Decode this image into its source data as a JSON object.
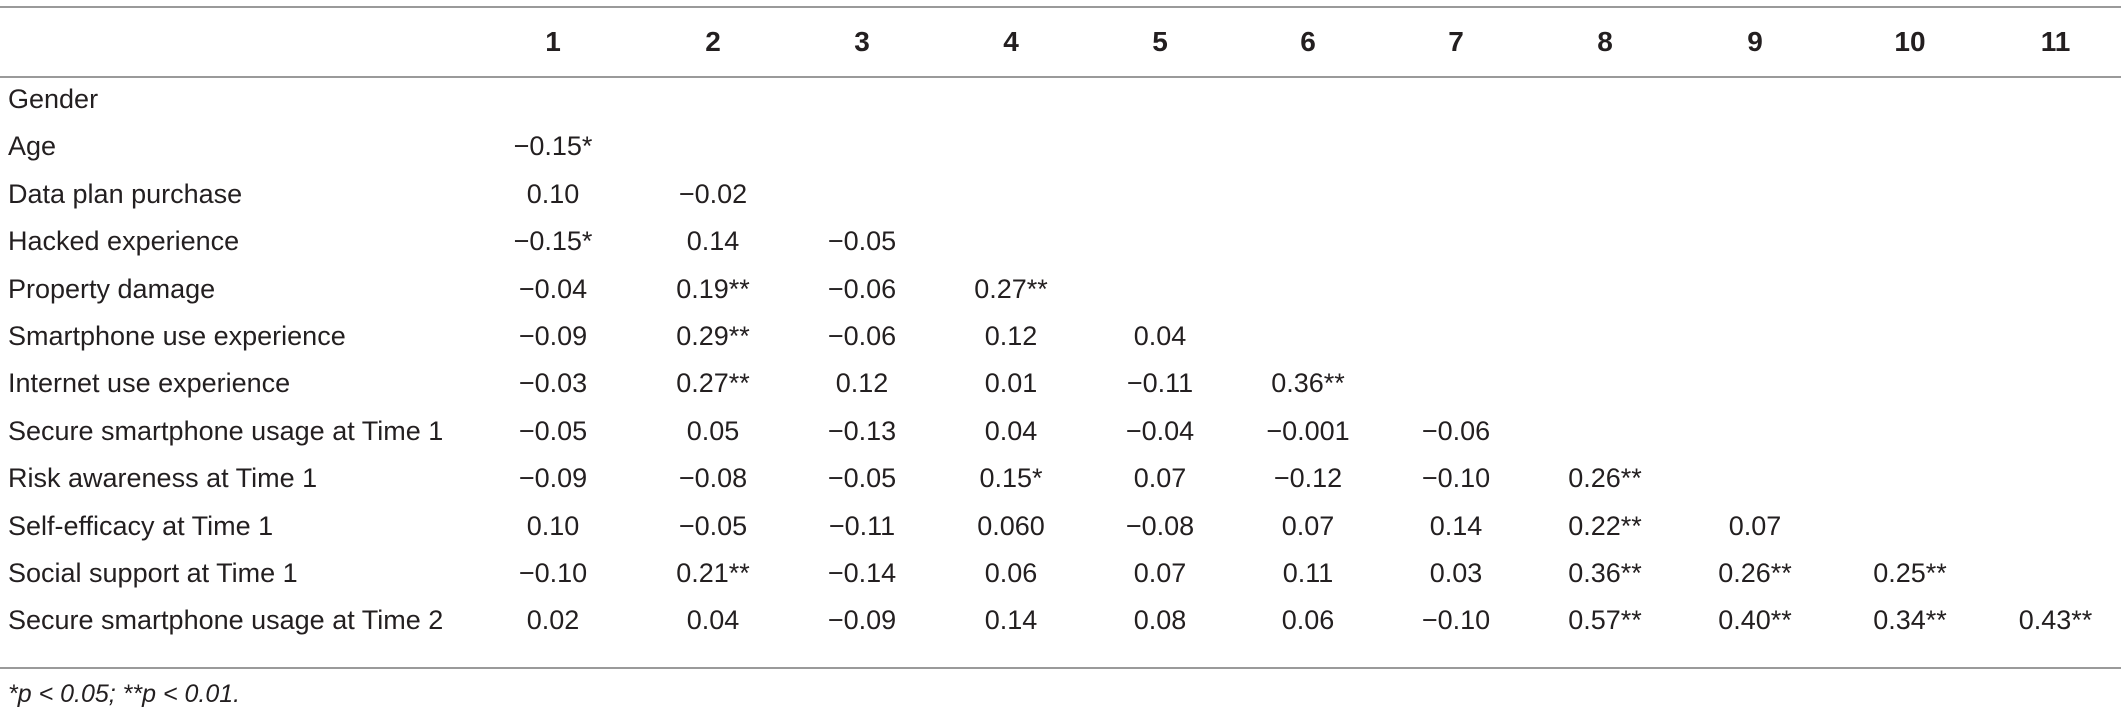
{
  "table": {
    "column_headers": [
      "",
      "1",
      "2",
      "3",
      "4",
      "5",
      "6",
      "7",
      "8",
      "9",
      "10",
      "11"
    ],
    "rows": [
      {
        "label": "Gender",
        "values": [
          "",
          "",
          "",
          "",
          "",
          "",
          "",
          "",
          "",
          "",
          ""
        ]
      },
      {
        "label": "Age",
        "values": [
          "−0.15*",
          "",
          "",
          "",
          "",
          "",
          "",
          "",
          "",
          "",
          ""
        ]
      },
      {
        "label": "Data plan purchase",
        "values": [
          "0.10",
          "−0.02",
          "",
          "",
          "",
          "",
          "",
          "",
          "",
          "",
          ""
        ]
      },
      {
        "label": "Hacked experience",
        "values": [
          "−0.15*",
          "0.14",
          "−0.05",
          "",
          "",
          "",
          "",
          "",
          "",
          "",
          ""
        ]
      },
      {
        "label": "Property damage",
        "values": [
          "−0.04",
          "0.19**",
          "−0.06",
          "0.27**",
          "",
          "",
          "",
          "",
          "",
          "",
          ""
        ]
      },
      {
        "label": "Smartphone use experience",
        "values": [
          "−0.09",
          "0.29**",
          "−0.06",
          "0.12",
          "0.04",
          "",
          "",
          "",
          "",
          "",
          ""
        ]
      },
      {
        "label": "Internet use experience",
        "values": [
          "−0.03",
          "0.27**",
          "0.12",
          "0.01",
          "−0.11",
          "0.36**",
          "",
          "",
          "",
          "",
          ""
        ]
      },
      {
        "label": "Secure smartphone usage at Time 1",
        "values": [
          "−0.05",
          "0.05",
          "−0.13",
          "0.04",
          "−0.04",
          "−0.001",
          "−0.06",
          "",
          "",
          "",
          ""
        ]
      },
      {
        "label": "Risk awareness at Time 1",
        "values": [
          "−0.09",
          "−0.08",
          "−0.05",
          "0.15*",
          "0.07",
          "−0.12",
          "−0.10",
          "0.26**",
          "",
          "",
          ""
        ]
      },
      {
        "label": "Self-efficacy at Time 1",
        "values": [
          "0.10",
          "−0.05",
          "−0.11",
          "0.060",
          "−0.08",
          "0.07",
          "0.14",
          "0.22**",
          "0.07",
          "",
          ""
        ]
      },
      {
        "label": "Social support at Time 1",
        "values": [
          "−0.10",
          "0.21**",
          "−0.14",
          "0.06",
          "0.07",
          "0.11",
          "0.03",
          "0.36**",
          "0.26**",
          "0.25**",
          ""
        ]
      },
      {
        "label": "Secure smartphone usage at Time 2",
        "values": [
          "0.02",
          "0.04",
          "−0.09",
          "0.14",
          "0.08",
          "0.06",
          "−0.10",
          "0.57**",
          "0.40**",
          "0.34**",
          "0.43**"
        ]
      }
    ]
  },
  "footnote": "*p < 0.05; **p < 0.01."
}
